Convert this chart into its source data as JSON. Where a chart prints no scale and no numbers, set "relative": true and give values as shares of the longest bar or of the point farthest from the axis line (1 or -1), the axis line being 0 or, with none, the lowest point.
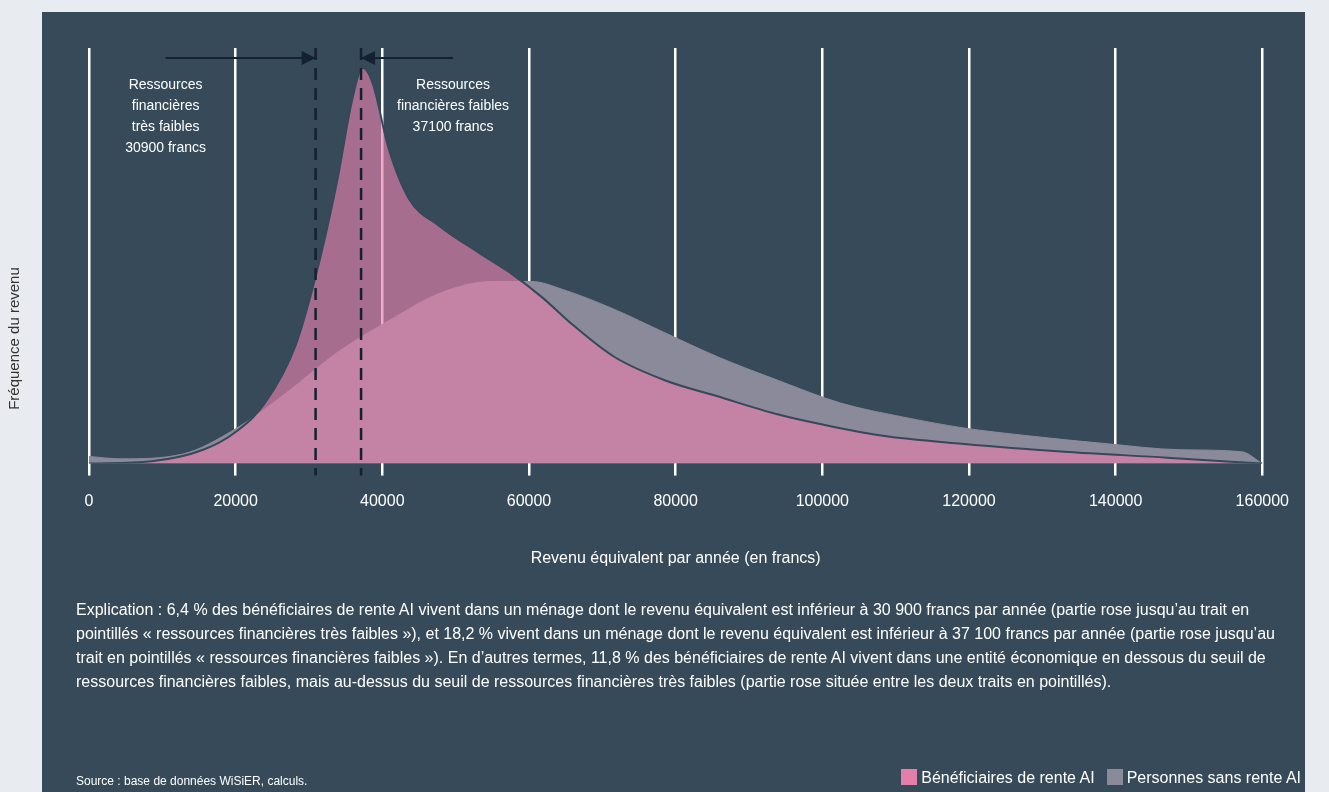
{
  "chart_data": {
    "type": "area",
    "relative": true,
    "xlabel": "Revenu équivalent par année (en francs)",
    "ylabel": "Fréquence du revenu",
    "xlim": [
      0,
      160000
    ],
    "xticks": [
      0,
      20000,
      40000,
      60000,
      80000,
      100000,
      120000,
      140000,
      160000
    ],
    "grid": "x",
    "legend": "bottom right",
    "series": [
      {
        "name": "Bénéficiaires de rente AI",
        "color": "#e47faa",
        "x": [
          0,
          8550,
          15570,
          20000,
          24000,
          28200,
          31000,
          33800,
          35900,
          37300,
          38700,
          40800,
          43600,
          47800,
          53400,
          57600,
          61800,
          66000,
          71600,
          78600,
          85700,
          94000,
          99700,
          108000,
          119000,
          133000,
          147000,
          160000
        ],
        "values": [
          0,
          0.006,
          0.035,
          0.08,
          0.153,
          0.3,
          0.48,
          0.71,
          0.92,
          1,
          0.96,
          0.8,
          0.67,
          0.6,
          0.53,
          0.48,
          0.42,
          0.35,
          0.27,
          0.21,
          0.17,
          0.124,
          0.1,
          0.071,
          0.05,
          0.03,
          0.015,
          0
        ]
      },
      {
        "name": "Personnes sans rente AI",
        "color": "#8a8a9a",
        "x": [
          0,
          4350,
          12760,
          20000,
          27000,
          33800,
          40800,
          47800,
          54800,
          60400,
          64600,
          71600,
          78600,
          85700,
          94000,
          102500,
          110900,
          119300,
          127700,
          138900,
          148800,
          157200,
          160000
        ],
        "values": [
          0.018,
          0.012,
          0.024,
          0.088,
          0.18,
          0.28,
          0.36,
          0.43,
          0.46,
          0.46,
          0.44,
          0.39,
          0.33,
          0.27,
          0.21,
          0.153,
          0.118,
          0.09,
          0.071,
          0.05,
          0.035,
          0.03,
          0
        ]
      }
    ],
    "ref_lines": [
      {
        "axis": "x",
        "value": 30900,
        "label": "Ressources\nfinancières\ntrès faibles\n30900 francs",
        "color": "#14212e",
        "line_style": "dashed"
      },
      {
        "axis": "x",
        "value": 37100,
        "label": "Ressources\nfinancières faibles\n37100 francs",
        "color": "#14212e",
        "line_style": "dashed"
      }
    ],
    "annotations": [
      "Explication : 6,4 % des bénéficiaires de rente AI vivent dans un ménage dont le revenu équivalent est inférieur à 30 900 francs par année (partie rose jusqu’au trait en pointillés « ressources financières très faibles »), et 18,2 % vivent dans un ménage dont le revenu équivalent est inférieur à 37 100 francs par année (partie rose jusqu’au trait en pointillés « ressources financières faibles »). En d’autres termes, 11,8 % des bénéficiaires de rente AI vivent dans une entité économique en dessous du seuil de ressources financières faibles, mais au-dessus du seuil de ressources financières très faibles (partie rose située entre les deux traits en pointillés).",
      "Source : base de données WiSiER, calculs."
    ]
  }
}
